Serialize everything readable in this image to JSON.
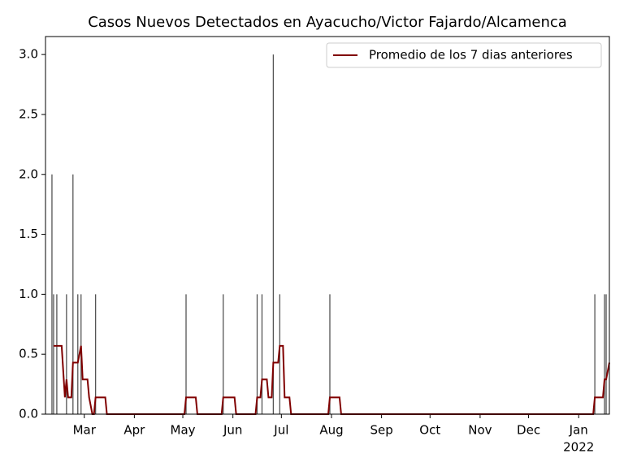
{
  "chart_data": {
    "type": "bar-line",
    "title": "Casos Nuevos Detectados en Ayacucho/Victor Fajardo/Alcamenca",
    "series": [
      {
        "type": "bar",
        "color": "#555555",
        "x": [
          4,
          5,
          7,
          13,
          17,
          20,
          22,
          31,
          87,
          110,
          131,
          134,
          141,
          145,
          176,
          340,
          346,
          347
        ],
        "values": [
          2,
          1,
          1,
          1,
          2,
          1,
          1,
          1,
          1,
          1,
          1,
          1,
          3,
          1,
          1,
          1,
          1,
          1
        ]
      },
      {
        "type": "line",
        "name": "Promedio de los 7 dias anteriores",
        "color": "#800000",
        "x": [
          5,
          10,
          12,
          13,
          14,
          16,
          17,
          20,
          22,
          23,
          26,
          27,
          29,
          30,
          31,
          37,
          38,
          86,
          87,
          93,
          94,
          109,
          110,
          117,
          118,
          130,
          131,
          133,
          134,
          137,
          138,
          140,
          141,
          144,
          145,
          147,
          148,
          151,
          152,
          175,
          176,
          182,
          183,
          339,
          340,
          345,
          346,
          347,
          349
        ],
        "values": [
          0.57,
          0.57,
          0.14,
          0.29,
          0.14,
          0.14,
          0.43,
          0.43,
          0.57,
          0.29,
          0.29,
          0.14,
          0,
          0,
          0.14,
          0.14,
          0,
          0,
          0.14,
          0.14,
          0,
          0,
          0.14,
          0.14,
          0,
          0,
          0.14,
          0.14,
          0.29,
          0.29,
          0.14,
          0.14,
          0.43,
          0.43,
          0.57,
          0.57,
          0.14,
          0.14,
          0,
          0,
          0.14,
          0.14,
          0,
          0,
          0.14,
          0.14,
          0.29,
          0.29,
          0.43
        ]
      }
    ],
    "xlim": [
      0,
      349
    ],
    "xticks": [
      {
        "value": 24,
        "label": "Mar"
      },
      {
        "value": 55,
        "label": "Apr"
      },
      {
        "value": 85,
        "label": "May"
      },
      {
        "value": 116,
        "label": "Jun"
      },
      {
        "value": 146,
        "label": "Jul"
      },
      {
        "value": 177,
        "label": "Aug"
      },
      {
        "value": 208,
        "label": "Sep"
      },
      {
        "value": 238,
        "label": "Oct"
      },
      {
        "value": 269,
        "label": "Nov"
      },
      {
        "value": 299,
        "label": "Dec"
      },
      {
        "value": 330,
        "label": "Jan"
      }
    ],
    "year_label": "2022",
    "ylim": [
      0,
      3.15
    ],
    "yticks": [
      {
        "value": 0,
        "label": "0.0"
      },
      {
        "value": 0.5,
        "label": "0.5"
      },
      {
        "value": 1,
        "label": "1.0"
      },
      {
        "value": 1.5,
        "label": "1.5"
      },
      {
        "value": 2,
        "label": "2.0"
      },
      {
        "value": 2.5,
        "label": "2.5"
      },
      {
        "value": 3,
        "label": "3.0"
      }
    ],
    "legend": "upper right"
  }
}
